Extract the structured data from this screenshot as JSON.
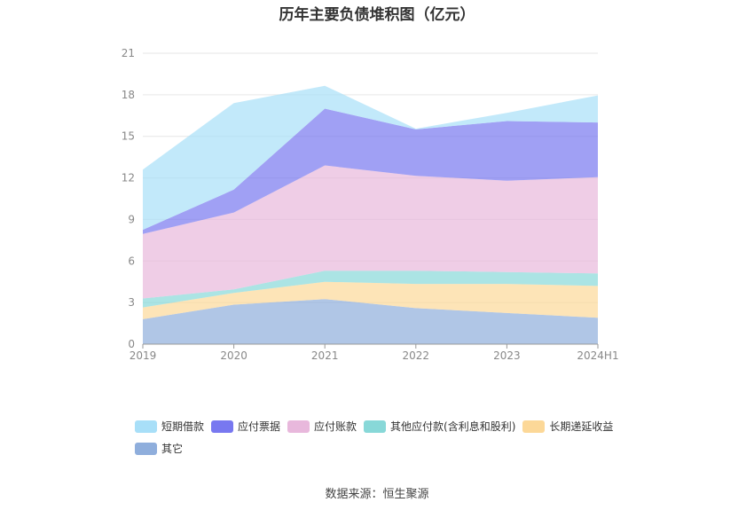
{
  "chart_data": {
    "type": "area",
    "stacked": true,
    "title": "历年主要负债堆积图（亿元）",
    "categories": [
      "2019",
      "2020",
      "2021",
      "2022",
      "2023",
      "2024H1"
    ],
    "ylim": [
      0,
      21
    ],
    "yticks": [
      0,
      3,
      6,
      9,
      12,
      15,
      18,
      21
    ],
    "grid": true,
    "legend_position": "bottom",
    "series": [
      {
        "name": "其它",
        "color": "#8faedc",
        "values": [
          1.8,
          2.85,
          3.25,
          2.6,
          2.25,
          1.9
        ]
      },
      {
        "name": "长期递延收益",
        "color": "#fcd898",
        "values": [
          0.85,
          0.85,
          1.25,
          1.75,
          2.1,
          2.3
        ]
      },
      {
        "name": "其他应付款(含利息和股利)",
        "color": "#88d8d8",
        "values": [
          0.65,
          0.25,
          0.8,
          0.95,
          0.85,
          0.9
        ]
      },
      {
        "name": "应付账款",
        "color": "#e8b8dc",
        "values": [
          4.65,
          5.55,
          7.6,
          6.85,
          6.6,
          6.95
        ]
      },
      {
        "name": "应付票据",
        "color": "#7878f0",
        "values": [
          0.3,
          1.65,
          4.1,
          3.35,
          4.3,
          3.95
        ]
      },
      {
        "name": "短期借款",
        "color": "#a8dff8",
        "values": [
          4.35,
          6.25,
          1.65,
          0.05,
          0.6,
          1.95
        ]
      }
    ]
  },
  "legend_order": [
    {
      "name": "短期借款",
      "color": "#a8dff8"
    },
    {
      "name": "应付票据",
      "color": "#7878f0"
    },
    {
      "name": "应付账款",
      "color": "#e8b8dc"
    },
    {
      "name": "其他应付款(含利息和股利)",
      "color": "#88d8d8"
    },
    {
      "name": "长期递延收益",
      "color": "#fcd898"
    },
    {
      "name": "其它",
      "color": "#8faedc"
    }
  ],
  "source": "数据来源：恒生聚源"
}
